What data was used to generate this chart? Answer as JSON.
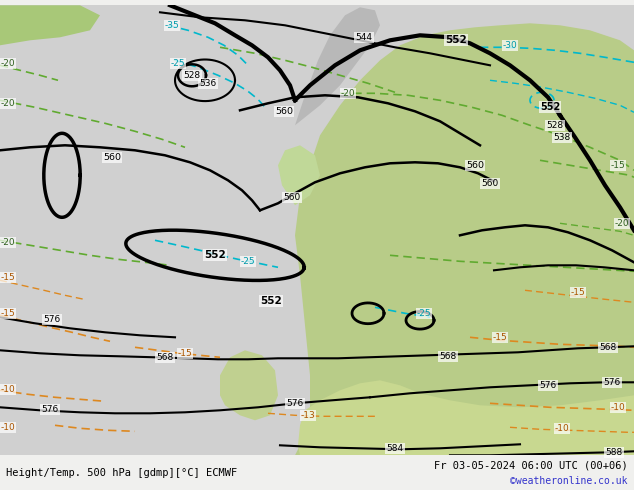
{
  "title_left": "Height/Temp. 500 hPa [gdmp][°C] ECMWF",
  "title_right": "Fr 03-05-2024 06:00 UTC (00+06)",
  "watermark": "©weatheronline.co.uk",
  "figsize": [
    6.34,
    4.9
  ],
  "dpi": 100,
  "bg_ocean": "#d2d2d2",
  "bg_gray_land": "#c8c8c8",
  "green_land": "#b0cc88",
  "green_land2": "#c8dc9a",
  "green_land3": "#98bc70"
}
